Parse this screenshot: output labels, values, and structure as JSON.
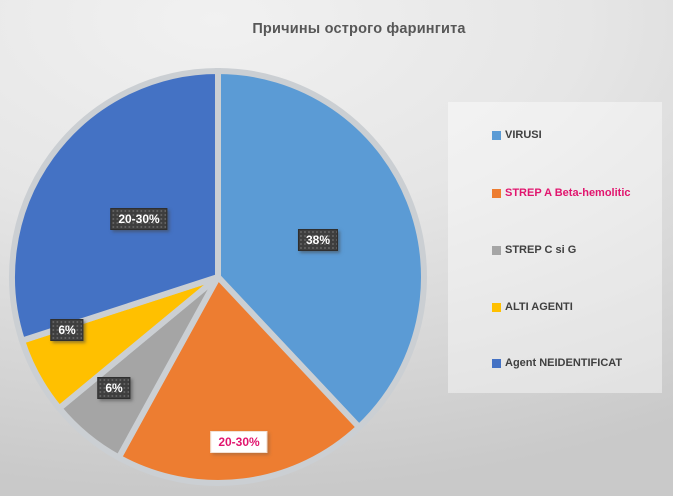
{
  "chart_data": {
    "type": "pie",
    "title": "Причины острого фарингита",
    "categories": [
      "VIRUSI",
      "STREP A Beta-hemolitic",
      "STREP C si G",
      "ALTI AGENTI",
      "Agent NEIDENTIFICAT"
    ],
    "values": [
      38,
      20,
      6,
      6,
      30
    ],
    "labels": [
      "38%",
      "20-30%",
      "6%",
      "6%",
      "20-30%"
    ],
    "colors": [
      "#5B9BD5",
      "#ED7D31",
      "#A5A5A5",
      "#FFC000",
      "#4472C4"
    ],
    "legend_text_colors": [
      "#404040",
      "#E1156E",
      "#404040",
      "#404040",
      "#404040"
    ],
    "legend_position": "right",
    "start_angle_deg": 0,
    "direction": "clockwise",
    "slice_border_color": "#CBCFD3"
  }
}
